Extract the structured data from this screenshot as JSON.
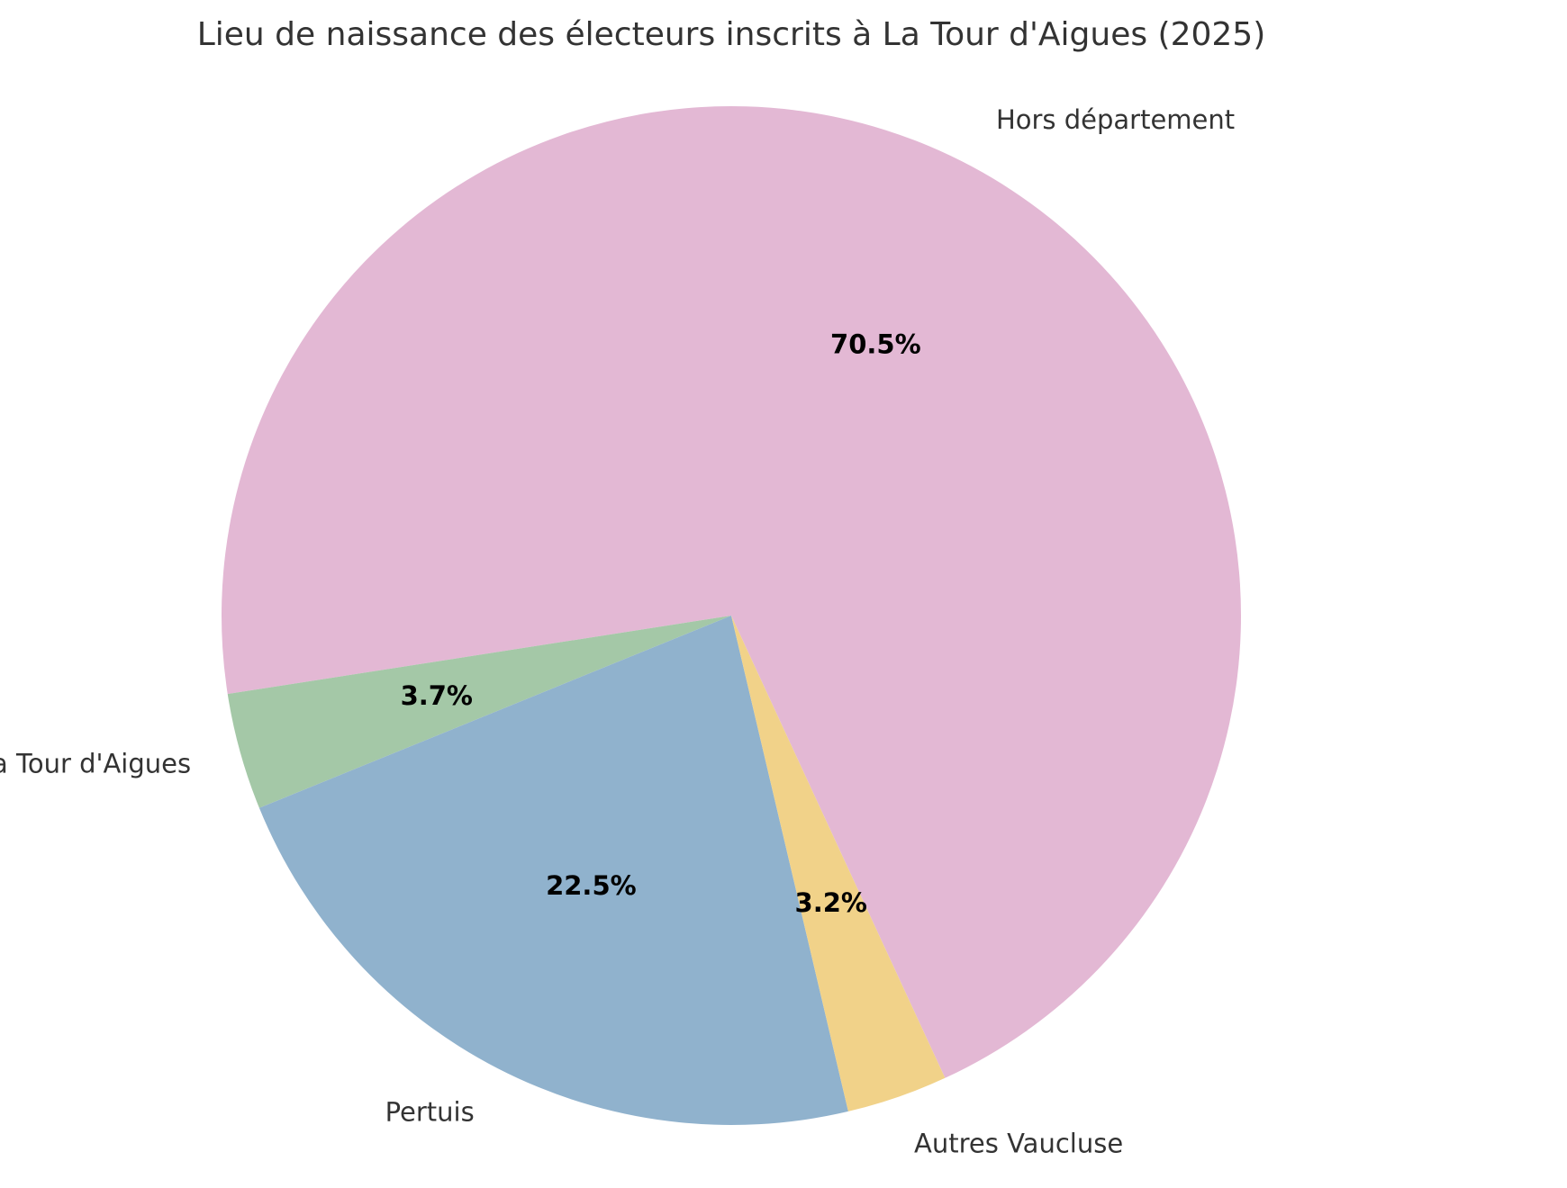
{
  "chart_data": {
    "type": "pie",
    "title": "Lieu de naissance des électeurs inscrits à La Tour d'Aigues (2025)",
    "slices": [
      {
        "label": "Hors département",
        "value": 70.5,
        "percent_label": "70.5%",
        "color": "#e3b8d4"
      },
      {
        "label": "La Tour d'Aigues",
        "value": 3.7,
        "percent_label": "3.7%",
        "color": "#a4c8a7"
      },
      {
        "label": "Pertuis",
        "value": 22.5,
        "percent_label": "22.5%",
        "color": "#90b2cd"
      },
      {
        "label": "Autres Vaucluse",
        "value": 3.2,
        "percent_label": "3.2%",
        "color": "#f1d289"
      }
    ],
    "start_angle_deg": -65.2,
    "direction": "counterclockwise",
    "legend": "none"
  }
}
